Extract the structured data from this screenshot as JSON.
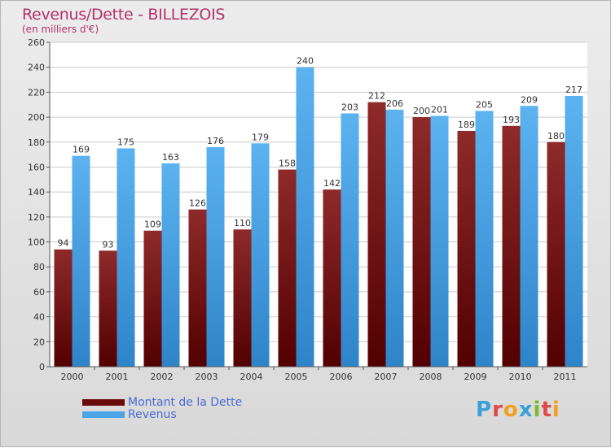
{
  "chart_data": {
    "type": "bar",
    "title": "Revenus/Dette - BILLEZOIS",
    "subtitle": "(en milliers d'€)",
    "categories": [
      "2000",
      "2001",
      "2002",
      "2003",
      "2004",
      "2005",
      "2006",
      "2007",
      "2008",
      "2009",
      "2010",
      "2011"
    ],
    "series": [
      {
        "name": "Montant de la Dette",
        "color": "#7a1717",
        "values": [
          94,
          93,
          109,
          126,
          110,
          158,
          142,
          212,
          200,
          189,
          193,
          180
        ]
      },
      {
        "name": "Revenus",
        "color": "#4ba6e8",
        "values": [
          169,
          175,
          163,
          176,
          179,
          240,
          203,
          206,
          201,
          205,
          209,
          217
        ]
      }
    ],
    "ylim": [
      0,
      260
    ],
    "yticks": [
      0,
      20,
      40,
      60,
      80,
      100,
      120,
      140,
      160,
      180,
      200,
      220,
      240,
      260
    ],
    "grid": true,
    "legend_position": "bottom-left"
  },
  "logo": {
    "text": "Proxiti"
  }
}
